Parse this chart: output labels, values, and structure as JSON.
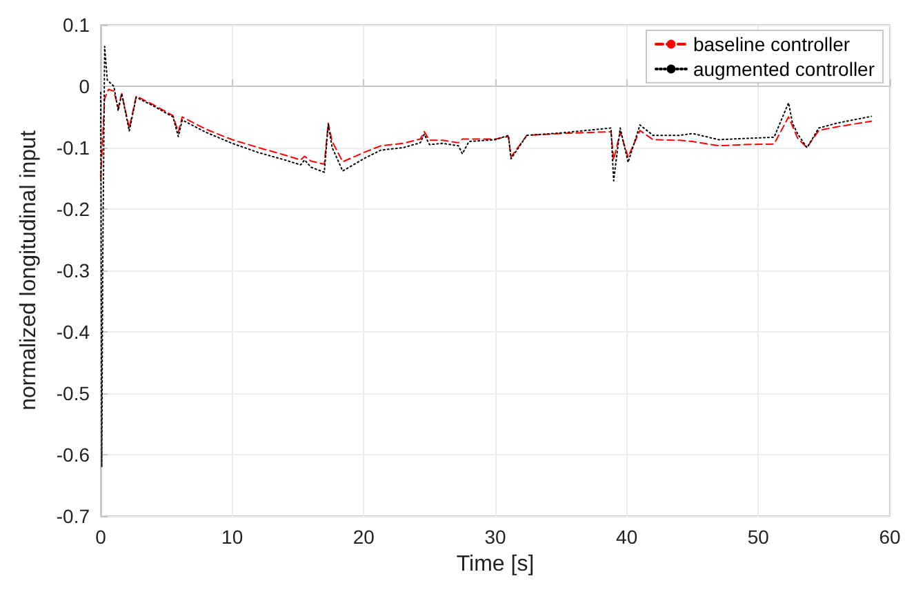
{
  "chart_data": {
    "type": "line",
    "xlabel": "Time [s]",
    "ylabel": "normalized longitudinal input",
    "xlim": [
      0,
      60
    ],
    "xticks": [
      0,
      10,
      20,
      30,
      40,
      50,
      60
    ],
    "ylim": [
      -0.7,
      0.1
    ],
    "yticks": [
      -0.7,
      -0.6,
      -0.5,
      -0.4,
      -0.3,
      -0.2,
      -0.1,
      0,
      0.1
    ],
    "grid": true,
    "legend": "top right",
    "marker": "none",
    "series": [
      {
        "name": "baseline controller",
        "color": "#ff0000",
        "line_style": "dashed",
        "x": [
          0,
          0.3,
          0.6,
          1.0,
          1.33,
          1.6,
          2.17,
          2.7,
          4,
          5.5,
          5.9,
          6.2,
          8,
          10,
          12,
          14,
          15.2,
          15.5,
          16,
          17,
          17.3,
          17.6,
          18.4,
          20,
          21.3,
          23,
          24.3,
          24.6,
          25,
          26,
          27.2,
          27.5,
          30,
          31,
          31.2,
          32.4,
          35,
          38.8,
          39,
          39.5,
          40.1,
          41,
          42,
          44,
          45,
          47,
          49,
          51.2,
          52.3,
          53,
          53.7,
          54.6,
          56,
          58.6
        ],
        "values": [
          -0.15,
          -0.02,
          -0.005,
          -0.008,
          -0.035,
          -0.012,
          -0.068,
          -0.016,
          -0.03,
          -0.048,
          -0.075,
          -0.05,
          -0.07,
          -0.087,
          -0.1,
          -0.112,
          -0.12,
          -0.114,
          -0.122,
          -0.127,
          -0.06,
          -0.09,
          -0.123,
          -0.108,
          -0.097,
          -0.093,
          -0.086,
          -0.074,
          -0.088,
          -0.088,
          -0.092,
          -0.086,
          -0.086,
          -0.082,
          -0.115,
          -0.08,
          -0.077,
          -0.074,
          -0.12,
          -0.075,
          -0.115,
          -0.072,
          -0.087,
          -0.088,
          -0.09,
          -0.097,
          -0.095,
          -0.094,
          -0.05,
          -0.085,
          -0.1,
          -0.072,
          -0.066,
          -0.057
        ]
      },
      {
        "name": "augmented controller",
        "color": "#000000",
        "line_style": "dotted",
        "x": [
          0,
          0.08,
          0.15,
          0.3,
          0.5,
          1.0,
          1.33,
          1.6,
          2.17,
          2.7,
          4,
          5.5,
          5.9,
          6.2,
          8,
          10,
          12,
          14,
          15.2,
          15.5,
          16,
          17,
          17.3,
          17.6,
          18.4,
          20,
          21.3,
          23,
          24.3,
          24.6,
          25,
          26,
          27.2,
          27.5,
          28,
          30,
          31,
          31.2,
          32.4,
          35,
          38.8,
          39,
          39.5,
          40.1,
          41,
          42,
          44,
          45,
          47,
          49,
          51.2,
          52.3,
          52.6,
          53,
          53.7,
          54.6,
          56,
          58.6
        ],
        "values": [
          -0.01,
          -0.62,
          -0.3,
          0.065,
          0.01,
          0,
          -0.04,
          -0.012,
          -0.073,
          -0.018,
          -0.032,
          -0.05,
          -0.082,
          -0.055,
          -0.075,
          -0.093,
          -0.108,
          -0.12,
          -0.128,
          -0.12,
          -0.132,
          -0.14,
          -0.062,
          -0.1,
          -0.138,
          -0.118,
          -0.104,
          -0.1,
          -0.092,
          -0.078,
          -0.095,
          -0.093,
          -0.097,
          -0.11,
          -0.09,
          -0.087,
          -0.08,
          -0.118,
          -0.08,
          -0.076,
          -0.068,
          -0.154,
          -0.068,
          -0.124,
          -0.063,
          -0.08,
          -0.08,
          -0.077,
          -0.087,
          -0.085,
          -0.083,
          -0.027,
          -0.06,
          -0.078,
          -0.1,
          -0.068,
          -0.06,
          -0.049
        ]
      }
    ]
  }
}
